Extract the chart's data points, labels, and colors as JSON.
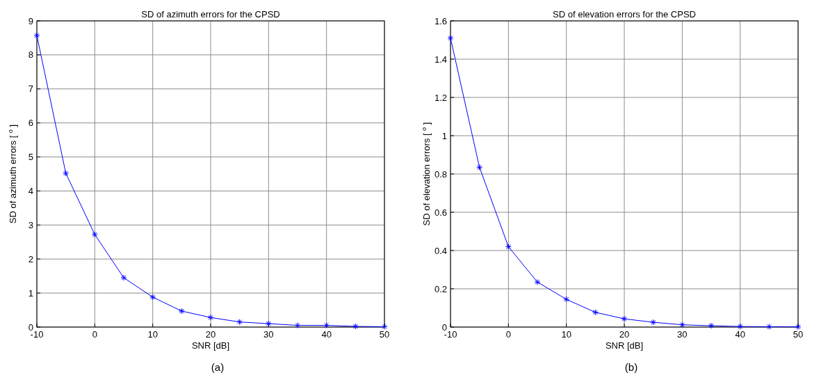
{
  "chart_data": [
    {
      "type": "line",
      "title": "SD of azimuth errors for the CPSD",
      "xlabel": "SNR [dB]",
      "ylabel": "SD of azimuth errors [ $^{o}$ ]",
      "annotations": [
        "(a)"
      ],
      "x": [
        -10,
        -5,
        0,
        5,
        10,
        15,
        20,
        25,
        30,
        35,
        40,
        45,
        50
      ],
      "series": [
        {
          "color": "#0000ff",
          "values": [
            8.57,
            4.52,
            2.72,
            1.45,
            0.88,
            0.47,
            0.28,
            0.15,
            0.1,
            0.05,
            0.05,
            0.02,
            0.01
          ]
        }
      ],
      "xlim": [
        -10,
        50
      ],
      "xticks": [
        -10,
        0,
        10,
        20,
        30,
        40,
        50
      ],
      "ylim": [
        0,
        9
      ],
      "yticks": [
        0,
        1,
        2,
        3,
        4,
        5,
        6,
        7,
        8,
        9
      ],
      "grid": true,
      "marker": "cross",
      "line_style": "solid"
    },
    {
      "type": "line",
      "title": "SD of elevation errors for the CPSD",
      "xlabel": "SNR [dB]",
      "ylabel": "SD of elevation errors [ $^{o}$ ]",
      "annotations": [
        "(b)"
      ],
      "x": [
        -10,
        -5,
        0,
        5,
        10,
        15,
        20,
        25,
        30,
        35,
        40,
        45,
        50
      ],
      "series": [
        {
          "color": "#0000ff",
          "values": [
            1.51,
            0.835,
            0.42,
            0.235,
            0.145,
            0.077,
            0.043,
            0.025,
            0.012,
            0.007,
            0.003,
            0.002,
            0.001
          ]
        }
      ],
      "xlim": [
        -10,
        50
      ],
      "xticks": [
        -10,
        0,
        10,
        20,
        30,
        40,
        50
      ],
      "ylim": [
        0,
        1.6
      ],
      "yticks": [
        0,
        0.2,
        0.4,
        0.6,
        0.8,
        1,
        1.2,
        1.4,
        1.6
      ],
      "grid": true,
      "marker": "cross",
      "line_style": "solid"
    }
  ]
}
